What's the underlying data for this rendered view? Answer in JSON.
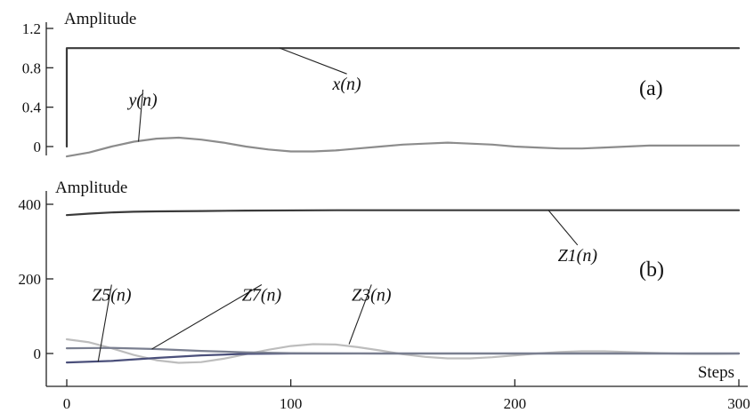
{
  "chart_data": [
    {
      "type": "line",
      "panel_label": "(a)",
      "ylabel": "Amplitude",
      "xlim": [
        0,
        300
      ],
      "ylim": [
        -0.1,
        1.2
      ],
      "yticks": [
        {
          "value": 1.2,
          "label": "1.2"
        },
        {
          "value": 0.8,
          "label": "0.8"
        },
        {
          "value": 0.4,
          "label": "0.4"
        },
        {
          "value": 0,
          "label": "0"
        }
      ],
      "series": [
        {
          "name": "x(n)",
          "color": "#3a3a3a",
          "x": [
            0,
            0,
            300
          ],
          "y": [
            0,
            1,
            1
          ]
        },
        {
          "name": "y(n)",
          "color": "#8c8c8c",
          "x": [
            0,
            10,
            20,
            30,
            40,
            50,
            60,
            70,
            80,
            90,
            100,
            110,
            120,
            130,
            140,
            150,
            160,
            170,
            180,
            190,
            200,
            210,
            220,
            230,
            240,
            250,
            260,
            270,
            280,
            290,
            300
          ],
          "y": [
            -0.1,
            -0.06,
            0.0,
            0.05,
            0.08,
            0.09,
            0.07,
            0.04,
            0.0,
            -0.03,
            -0.05,
            -0.05,
            -0.04,
            -0.02,
            0.0,
            0.02,
            0.03,
            0.04,
            0.03,
            0.02,
            0.0,
            -0.01,
            -0.02,
            -0.02,
            -0.01,
            0.0,
            0.01,
            0.01,
            0.01,
            0.01,
            0.01
          ]
        }
      ],
      "annotations": [
        {
          "text": "x(n)",
          "series": "x(n)",
          "at_x": 95,
          "at_y": 1.0,
          "label_x": 125,
          "label_y": 0.63
        },
        {
          "text": "y(n)",
          "series": "y(n)",
          "at_x": 32,
          "at_y": 0.05,
          "label_x": 34,
          "label_y": 0.47
        }
      ]
    },
    {
      "type": "line",
      "panel_label": "(b)",
      "ylabel": "Amplitude",
      "xlabel": "Steps",
      "xlim": [
        0,
        300
      ],
      "ylim": [
        -70,
        440
      ],
      "xticks": [
        {
          "value": 0,
          "label": "0"
        },
        {
          "value": 100,
          "label": "100"
        },
        {
          "value": 200,
          "label": "200"
        },
        {
          "value": 300,
          "label": "300"
        }
      ],
      "yticks": [
        {
          "value": 400,
          "label": "400"
        },
        {
          "value": 200,
          "label": "200"
        },
        {
          "value": 0,
          "label": "0"
        }
      ],
      "series": [
        {
          "name": "Z1(n)",
          "color": "#3a3a3a",
          "x": [
            0,
            10,
            20,
            30,
            40,
            60,
            80,
            120,
            160,
            200,
            250,
            300
          ],
          "y": [
            371,
            375,
            378,
            380,
            381,
            382,
            383,
            384,
            384,
            384,
            384,
            384
          ]
        },
        {
          "name": "Z3(n)",
          "color": "#bdbdbd",
          "x": [
            0,
            10,
            20,
            30,
            40,
            50,
            60,
            70,
            80,
            90,
            100,
            110,
            120,
            130,
            140,
            150,
            160,
            170,
            180,
            190,
            200,
            210,
            220,
            230,
            240,
            250,
            260,
            270,
            280,
            290,
            300
          ],
          "y": [
            38,
            30,
            14,
            -4,
            -18,
            -25,
            -23,
            -14,
            -2,
            10,
            20,
            25,
            24,
            17,
            8,
            -2,
            -9,
            -13,
            -13,
            -10,
            -5,
            0,
            4,
            6,
            6,
            4,
            2,
            0,
            -1,
            -1,
            0
          ]
        },
        {
          "name": "Z5(n)",
          "color": "#4a4f7a",
          "x": [
            0,
            20,
            40,
            60,
            80,
            100,
            120,
            140,
            160,
            200,
            250,
            300
          ],
          "y": [
            -24,
            -20,
            -12,
            -5,
            -1,
            0,
            0,
            0,
            0,
            0,
            0,
            0
          ]
        },
        {
          "name": "Z7(n)",
          "color": "#7a7f90",
          "x": [
            0,
            20,
            40,
            60,
            80,
            100,
            140,
            200,
            250,
            300
          ],
          "y": [
            14,
            15,
            12,
            7,
            3,
            1,
            0,
            0,
            0,
            0
          ]
        }
      ],
      "annotations": [
        {
          "text": "Z1(n)",
          "series": "Z1(n)",
          "at_x": 215,
          "at_y": 384,
          "label_x": 228,
          "label_y": 262
        },
        {
          "text": "Z5(n)",
          "series": "Z5(n)",
          "at_x": 14,
          "at_y": -22,
          "label_x": 20,
          "label_y": 156
        },
        {
          "text": "Z7(n)",
          "series": "Z7(n)",
          "at_x": 38,
          "at_y": 12,
          "label_x": 87,
          "label_y": 156
        },
        {
          "text": "Z3(n)",
          "series": "Z3(n)",
          "at_x": 126,
          "at_y": 25,
          "label_x": 136,
          "label_y": 156
        }
      ]
    }
  ]
}
